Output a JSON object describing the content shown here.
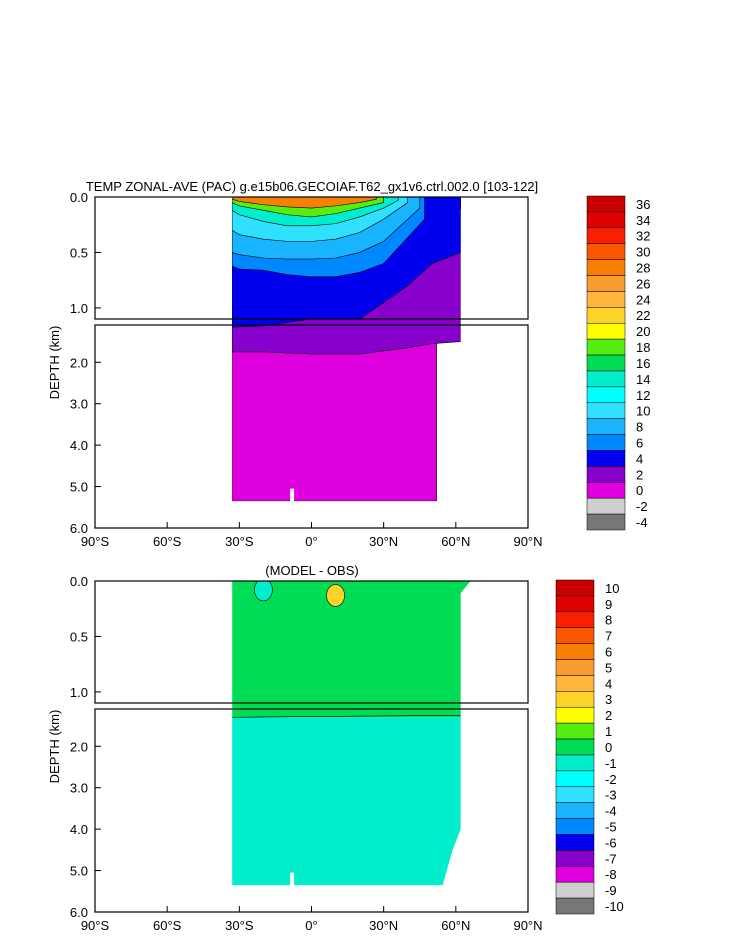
{
  "chart_data": [
    {
      "type": "contour",
      "title": "TEMP ZONAL-AVE (PAC) g.e15b06.GECOIAF.T62_gx1v6.ctrl.002.0 [103-122]",
      "xlabel": "",
      "ylabel": "DEPTH (km)",
      "xlim": [
        -90,
        90
      ],
      "ylim_upper": [
        0.0,
        1.1
      ],
      "ylim_lower": [
        1.1,
        6.0
      ],
      "x_ticks": [
        -90,
        -60,
        -30,
        0,
        30,
        60,
        90
      ],
      "x_tick_labels": [
        "90°S",
        "60°S",
        "30°S",
        "0°",
        "30°N",
        "60°N",
        "90°N"
      ],
      "y_ticks_upper": [
        0.0,
        0.5,
        1.0
      ],
      "y_tick_labels_upper": [
        "0.0",
        "0.5",
        "1.0"
      ],
      "y_ticks_lower": [
        2.0,
        3.0,
        4.0,
        5.0,
        6.0
      ],
      "y_tick_labels_lower": [
        "2.0",
        "3.0",
        "4.0",
        "5.0",
        "6.0"
      ],
      "colorbar_labels": [
        "36",
        "34",
        "32",
        "30",
        "28",
        "26",
        "24",
        "22",
        "20",
        "18",
        "16",
        "14",
        "12",
        "10",
        "8",
        "6",
        "4",
        "2",
        "0",
        "-2",
        "-4"
      ],
      "colorbar_colors": [
        "#c80000",
        "#e00000",
        "#f82000",
        "#f85800",
        "#f88000",
        "#f89c30",
        "#ffb43c",
        "#ffd22a",
        "#ffff00",
        "#55ee11",
        "#00dd55",
        "#00eecc",
        "#00ffff",
        "#30e0ff",
        "#18b4ff",
        "#0088ff",
        "#0000ee",
        "#8800cc",
        "#dd00dd",
        "#cfcfcf",
        "#777777"
      ],
      "fields": {
        "ocean_lat_range": [
          -33,
          62
        ],
        "levels": [
          {
            "label": "20-28",
            "color": "#f88000",
            "x": [
              -33,
              -30,
              -20,
              -10,
              0,
              10,
              20,
              27
            ],
            "depth_bottom": [
              0.02,
              0.04,
              0.07,
              0.09,
              0.1,
              0.08,
              0.05,
              0.02
            ]
          },
          {
            "label": "18-20",
            "color": "#55ee11",
            "x": [
              -33,
              -30,
              -20,
              -10,
              0,
              10,
              20,
              30
            ],
            "depth_bottom": [
              0.05,
              0.08,
              0.12,
              0.16,
              0.18,
              0.15,
              0.1,
              0.05
            ]
          },
          {
            "label": "14-18",
            "color": "#00eecc",
            "x": [
              -33,
              -30,
              -20,
              -10,
              0,
              10,
              20,
              30,
              36
            ],
            "depth_bottom": [
              0.12,
              0.16,
              0.22,
              0.26,
              0.26,
              0.24,
              0.18,
              0.1,
              0.03
            ]
          },
          {
            "label": "10-14",
            "color": "#30e0ff",
            "x": [
              -33,
              -30,
              -20,
              -10,
              0,
              10,
              20,
              30,
              40
            ],
            "depth_bottom": [
              0.3,
              0.34,
              0.38,
              0.4,
              0.4,
              0.38,
              0.32,
              0.2,
              0.05
            ]
          },
          {
            "label": "8-10",
            "color": "#18b4ff",
            "x": [
              -33,
              -30,
              -20,
              -10,
              0,
              10,
              20,
              30,
              45
            ],
            "depth_bottom": [
              0.5,
              0.52,
              0.55,
              0.56,
              0.56,
              0.55,
              0.5,
              0.4,
              0.1
            ]
          },
          {
            "label": "6-8",
            "color": "#0088ff",
            "x": [
              -33,
              -30,
              -20,
              -10,
              0,
              10,
              20,
              30,
              47
            ],
            "depth_bottom": [
              0.62,
              0.65,
              0.66,
              0.7,
              0.72,
              0.72,
              0.68,
              0.6,
              0.2
            ]
          },
          {
            "label": "4-6",
            "color": "#0000ee",
            "x": [
              -33,
              -20,
              0,
              20,
              40,
              50,
              62
            ],
            "depth_bottom": [
              1.15,
              1.12,
              1.1,
              1.1,
              0.8,
              0.6,
              0.5
            ]
          },
          {
            "label": "2-4",
            "color": "#8800cc",
            "x": [
              -33,
              -20,
              0,
              20,
              40,
              50,
              62
            ],
            "depth_bottom": [
              1.75,
              1.75,
              1.8,
              1.8,
              1.65,
              1.55,
              1.5
            ]
          },
          {
            "label": "0-2",
            "color": "#dd00dd",
            "x": [
              -33,
              52
            ],
            "depth_bottom": [
              5.35,
              5.35
            ]
          }
        ]
      }
    },
    {
      "type": "contour",
      "title": "(MODEL - OBS)",
      "xlabel": "",
      "ylabel": "DEPTH (km)",
      "xlim": [
        -90,
        90
      ],
      "ylim_upper": [
        0.0,
        1.1
      ],
      "ylim_lower": [
        1.1,
        6.0
      ],
      "x_ticks": [
        -90,
        -60,
        -30,
        0,
        30,
        60,
        90
      ],
      "x_tick_labels": [
        "90°S",
        "60°S",
        "30°S",
        "0°",
        "30°N",
        "60°N",
        "90°N"
      ],
      "y_ticks_upper": [
        0.0,
        0.5,
        1.0
      ],
      "y_tick_labels_upper": [
        "0.0",
        "0.5",
        "1.0"
      ],
      "y_ticks_lower": [
        2.0,
        3.0,
        4.0,
        5.0,
        6.0
      ],
      "y_tick_labels_lower": [
        "2.0",
        "3.0",
        "4.0",
        "5.0",
        "6.0"
      ],
      "colorbar_labels": [
        "10",
        "9",
        "8",
        "7",
        "6",
        "5",
        "4",
        "3",
        "2",
        "1",
        "0",
        "-1",
        "-2",
        "-3",
        "-4",
        "-5",
        "-6",
        "-7",
        "-8",
        "-9",
        "-10"
      ],
      "colorbar_colors": [
        "#c80000",
        "#e00000",
        "#f82000",
        "#f85800",
        "#f88000",
        "#f89c30",
        "#ffb43c",
        "#ffd22a",
        "#ffff00",
        "#55ee11",
        "#00dd55",
        "#00eecc",
        "#00ffff",
        "#30e0ff",
        "#18b4ff",
        "#0088ff",
        "#0000ee",
        "#8800cc",
        "#dd00dd",
        "#cfcfcf",
        "#777777"
      ],
      "fields": {
        "ocean_lat_range": [
          -33,
          62
        ],
        "upper_fill_color": "#00dd55",
        "lower_fill_color": "#00eecc",
        "transition_depth": 1.3,
        "anomalies": [
          {
            "label": "warm-core",
            "color": "#ffd22a",
            "x": 10,
            "depth": 0.13,
            "value": 3
          },
          {
            "label": "cool-band",
            "color": "#00eecc",
            "x": -20,
            "depth": 0.08,
            "value": -1
          }
        ]
      }
    }
  ]
}
